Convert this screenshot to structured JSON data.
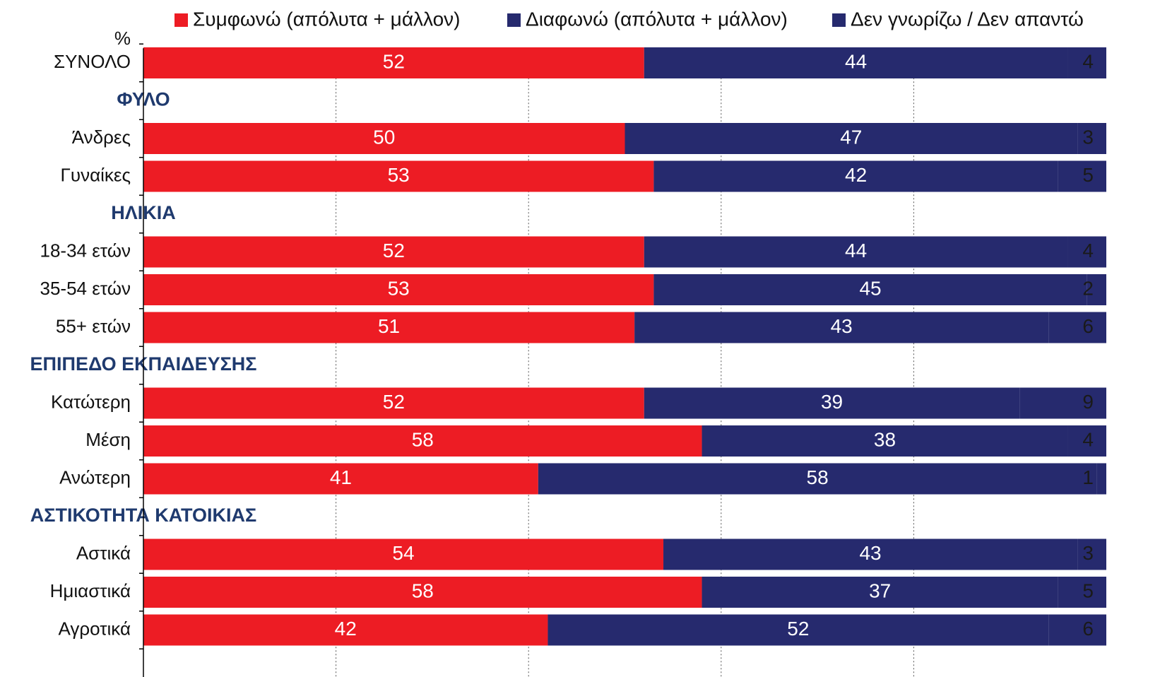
{
  "chart_data": {
    "type": "stacked-barh",
    "y_axis_label": "%",
    "categories": [
      "ΣΥΝΟΛΟ",
      "ΦΥΛΟ",
      "Άνδρες",
      "Γυναίκες",
      "ΗΛΙΚΙΑ",
      "18-34 ετών",
      "35-54 ετών",
      "55+ ετών",
      "ΕΠΙΠΕΔΟ ΕΚΠΑΙΔΕΥΣΗΣ",
      "Κατώτερη",
      "Μέση",
      "Ανώτερη",
      "ΑΣΤΙΚΟΤΗΤΑ ΚΑΤΟΙΚΙΑΣ",
      "Αστικά",
      "Ημιαστικά",
      "Αγροτικά"
    ],
    "series": [
      {
        "name": "Συμφωνώ (απόλυτα + μάλλον)",
        "color": "#ed1c24",
        "label_color": "#ffffff",
        "values": [
          52,
          null,
          50,
          53,
          null,
          52,
          53,
          51,
          null,
          52,
          58,
          41,
          null,
          54,
          58,
          42
        ]
      },
      {
        "name": "Διαφωνώ (απόλυτα + μάλλον)",
        "color": "#262a6e",
        "label_color": "#ffffff",
        "values": [
          44,
          null,
          47,
          42,
          null,
          44,
          45,
          43,
          null,
          39,
          38,
          58,
          null,
          43,
          37,
          52
        ]
      },
      {
        "name": "Δεν γνωρίζω / Δεν απαντώ",
        "color": "#262a6e",
        "label_color": "#1a1a1a",
        "values": [
          4,
          null,
          3,
          5,
          null,
          4,
          2,
          6,
          null,
          9,
          4,
          1,
          null,
          3,
          5,
          6
        ]
      }
    ],
    "xlim": [
      0,
      100
    ],
    "xticks": [
      0,
      20,
      40,
      60,
      80,
      100
    ],
    "grid": true,
    "legend": "top"
  }
}
